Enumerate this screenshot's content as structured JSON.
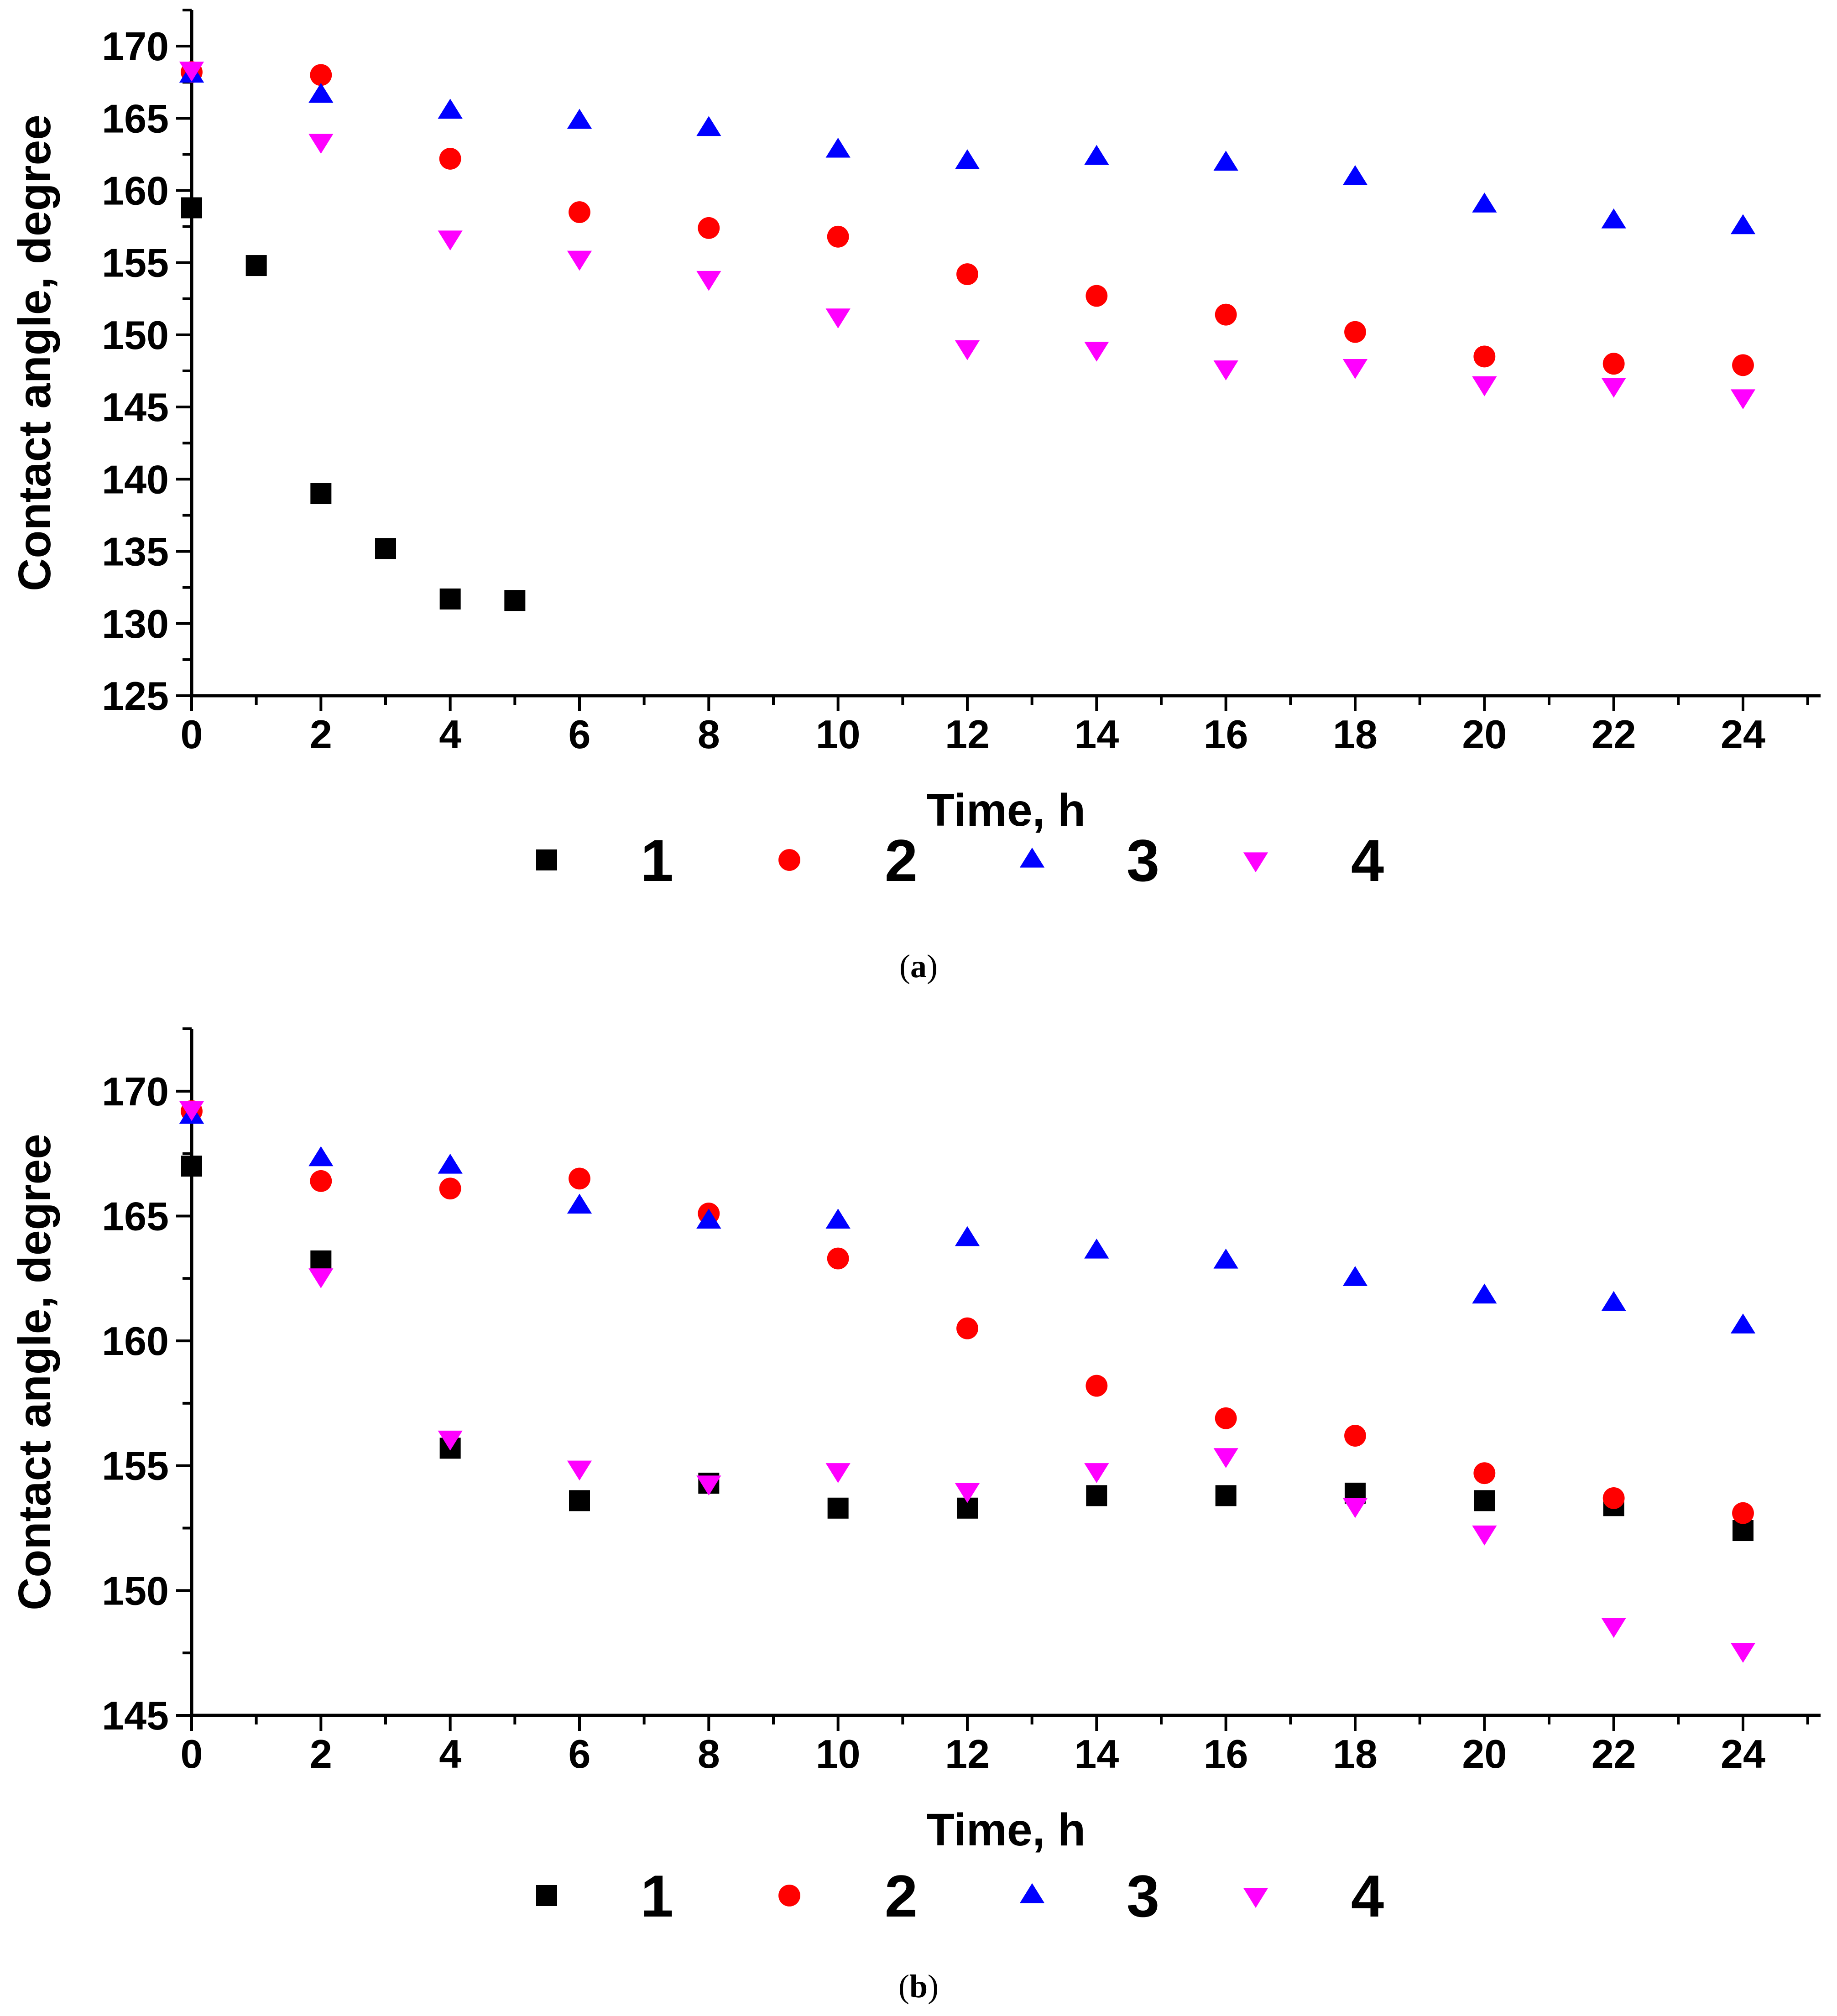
{
  "chart_data": [
    {
      "panel": "a",
      "caption": {
        "open": "(",
        "letter": "a",
        "close": ")"
      },
      "type": "scatter",
      "xlabel": "Time, h",
      "ylabel": "Contact angle, degree",
      "xlim": [
        0,
        25.2
      ],
      "ylim": [
        125,
        172.5
      ],
      "xticks": [
        0,
        2,
        4,
        6,
        8,
        10,
        12,
        14,
        16,
        18,
        20,
        22,
        24
      ],
      "yticks": [
        125,
        130,
        135,
        140,
        145,
        150,
        155,
        160,
        165,
        170
      ],
      "legend_position": "bottom",
      "series": [
        {
          "name": "1",
          "marker": "square",
          "color": "#000000",
          "x": [
            0,
            1,
            2,
            3,
            4,
            5
          ],
          "y": [
            158.8,
            154.8,
            139.0,
            135.2,
            131.7,
            131.6
          ]
        },
        {
          "name": "2",
          "marker": "circle",
          "color": "#ff0000",
          "x": [
            0,
            2,
            4,
            6,
            8,
            10,
            12,
            14,
            16,
            18,
            20,
            22,
            24
          ],
          "y": [
            168.2,
            168.0,
            162.2,
            158.5,
            157.4,
            156.8,
            154.2,
            152.7,
            151.4,
            150.2,
            148.5,
            148.0,
            147.9
          ]
        },
        {
          "name": "3",
          "marker": "triangle-up",
          "color": "#0000ff",
          "x": [
            0,
            2,
            4,
            6,
            8,
            10,
            12,
            14,
            16,
            18,
            20,
            22,
            24
          ],
          "y": [
            168.0,
            166.6,
            165.5,
            164.8,
            164.3,
            162.8,
            162.0,
            162.3,
            161.9,
            160.9,
            159.0,
            157.9,
            157.5
          ]
        },
        {
          "name": "4",
          "marker": "triangle-down",
          "color": "#ff00ff",
          "x": [
            0,
            2,
            4,
            6,
            8,
            10,
            12,
            14,
            16,
            18,
            20,
            22,
            24
          ],
          "y": [
            168.4,
            163.4,
            156.7,
            155.3,
            153.9,
            151.3,
            149.1,
            149.0,
            147.7,
            147.8,
            146.6,
            146.5,
            145.7
          ]
        }
      ]
    },
    {
      "panel": "b",
      "caption": {
        "open": "(",
        "letter": "b",
        "close": ")"
      },
      "type": "scatter",
      "xlabel": "Time, h",
      "ylabel": "Contact angle, degree",
      "xlim": [
        0,
        25.2
      ],
      "ylim": [
        145,
        172.5
      ],
      "xticks": [
        0,
        2,
        4,
        6,
        8,
        10,
        12,
        14,
        16,
        18,
        20,
        22,
        24
      ],
      "yticks": [
        145,
        150,
        155,
        160,
        165,
        170
      ],
      "legend_position": "bottom",
      "series": [
        {
          "name": "1",
          "marker": "square",
          "color": "#000000",
          "x": [
            0,
            2,
            4,
            6,
            8,
            10,
            12,
            14,
            16,
            18,
            20,
            22,
            24
          ],
          "y": [
            167.0,
            163.2,
            155.7,
            153.6,
            154.3,
            153.3,
            153.3,
            153.8,
            153.8,
            153.9,
            153.6,
            153.4,
            152.4
          ]
        },
        {
          "name": "2",
          "marker": "circle",
          "color": "#ff0000",
          "x": [
            0,
            2,
            4,
            6,
            8,
            10,
            12,
            14,
            16,
            18,
            20,
            22,
            24
          ],
          "y": [
            169.2,
            166.4,
            166.1,
            166.5,
            165.1,
            163.3,
            160.5,
            158.2,
            156.9,
            156.2,
            154.7,
            153.7,
            153.1
          ]
        },
        {
          "name": "3",
          "marker": "triangle-up",
          "color": "#0000ff",
          "x": [
            0,
            2,
            4,
            6,
            8,
            10,
            12,
            14,
            16,
            18,
            20,
            22,
            24
          ],
          "y": [
            169.0,
            167.3,
            167.0,
            165.4,
            164.8,
            164.8,
            164.1,
            163.6,
            163.2,
            162.5,
            161.8,
            161.5,
            160.6
          ]
        },
        {
          "name": "4",
          "marker": "triangle-down",
          "color": "#ff00ff",
          "x": [
            0,
            2,
            4,
            6,
            8,
            10,
            12,
            14,
            16,
            18,
            20,
            22,
            24
          ],
          "y": [
            169.3,
            162.6,
            156.1,
            154.9,
            154.3,
            154.8,
            154.0,
            154.8,
            155.4,
            153.4,
            152.3,
            148.6,
            147.6
          ]
        }
      ]
    }
  ]
}
